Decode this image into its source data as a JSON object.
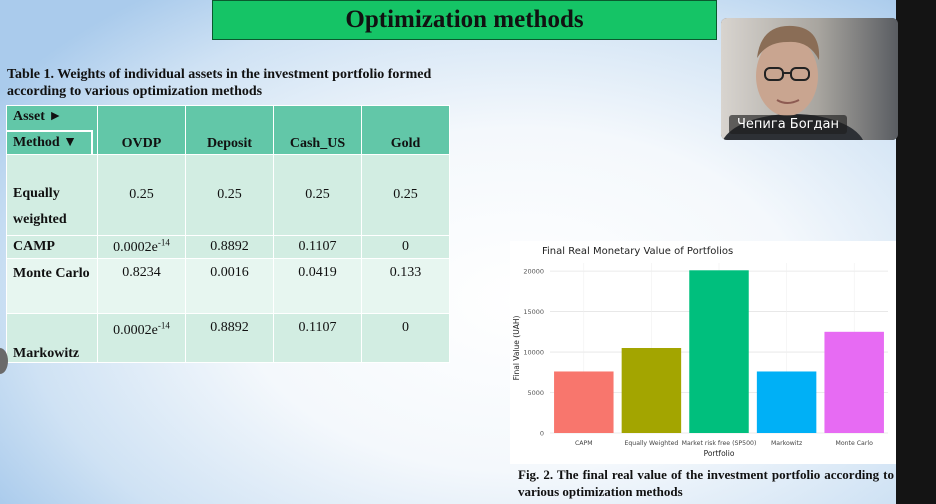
{
  "slide": {
    "title": "Optimization methods"
  },
  "table": {
    "caption": "Table 1. Weights of individual assets in the investment portfolio formed according to various optimization methods",
    "corner_top": "Asset ►",
    "corner_bottom": "Method ▼",
    "columns": [
      "OVDP",
      "Deposit",
      "Cash_US",
      "Gold"
    ],
    "rows": [
      {
        "method": "Equally weighted",
        "values": [
          "0.25",
          "0.25",
          "0.25",
          "0.25"
        ]
      },
      {
        "method": "CAMP",
        "values": [
          "0.0002e-14",
          "0.8892",
          "0.1107",
          "0"
        ]
      },
      {
        "method": "Monte Carlo",
        "values": [
          "0.8234",
          "0.0016",
          "0.0419",
          "0.133"
        ]
      },
      {
        "method": "Markowitz",
        "values": [
          "0.0002e-14",
          "0.8892",
          "0.1107",
          "0"
        ]
      }
    ]
  },
  "webcam": {
    "participant_name": "Чепига Богдан"
  },
  "chart_data": {
    "type": "bar",
    "title": "Final Real Monetary Value of Portfolios",
    "xlabel": "Portfolio",
    "ylabel": "Final Value (UAH)",
    "categories": [
      "CAPM",
      "Equally Weighted",
      "Market risk free (SP500)",
      "Markowitz",
      "Monte Carlo"
    ],
    "values": [
      7600,
      10500,
      20100,
      7600,
      12500
    ],
    "colors": [
      "#f8766d",
      "#a3a500",
      "#00bf7d",
      "#00b0f6",
      "#e76bf3"
    ],
    "ylim": [
      0,
      21000
    ],
    "yticks": [
      0,
      5000,
      10000,
      15000,
      20000
    ],
    "grid": true,
    "legend": "none"
  },
  "figure": {
    "caption": "Fig. 2. The final real value of the investment portfolio according to various optimization methods"
  }
}
